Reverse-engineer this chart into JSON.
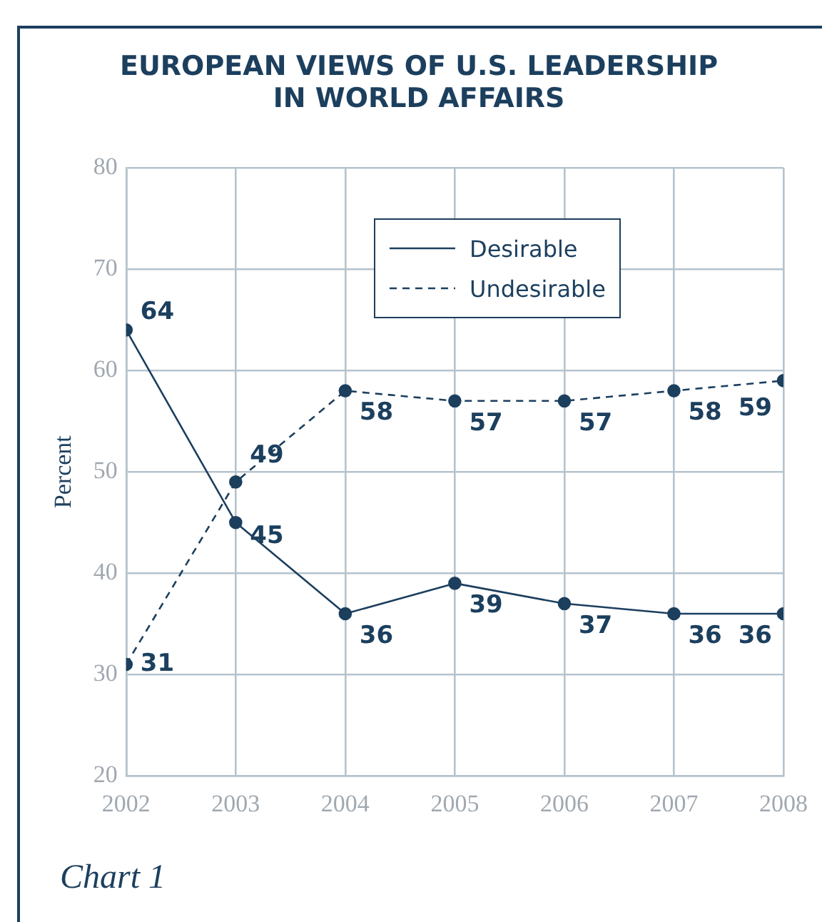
{
  "chart_data": {
    "type": "line",
    "title": "EUROPEAN VIEWS OF U.S. LEADERSHIP\nIN WORLD AFFAIRS",
    "ylabel": "Percent",
    "annotations": [
      "Chart 1"
    ],
    "x": [
      2002,
      2003,
      2004,
      2005,
      2006,
      2007,
      2008
    ],
    "xlim": [
      2002,
      2008
    ],
    "xticks": [
      2002,
      2003,
      2004,
      2005,
      2006,
      2007,
      2008
    ],
    "ylim": [
      20,
      80
    ],
    "yticks": [
      20,
      30,
      40,
      50,
      60,
      70,
      80
    ],
    "grid": true,
    "legend": "top",
    "marker": "circle",
    "data_labels": true,
    "series": [
      {
        "name": "Desirable",
        "color": "#1c3f5e",
        "line_style": "solid",
        "values": [
          64,
          45,
          36,
          39,
          37,
          36,
          36
        ]
      },
      {
        "name": "Undesirable",
        "color": "#1c3f5e",
        "line_style": "dashed",
        "values": [
          31,
          49,
          58,
          57,
          57,
          58,
          59
        ]
      }
    ]
  }
}
